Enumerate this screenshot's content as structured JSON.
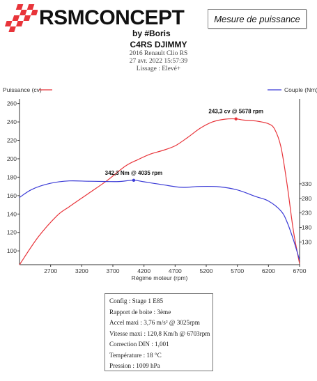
{
  "brand": {
    "logo_text": "RSMCONCEPT",
    "logo_sub": "by #Boris",
    "badge": "Mesure de puissance"
  },
  "header": {
    "title": "C4RS DJIMMY",
    "car": "2016 Renault Clio RS",
    "date": "27 avr. 2022 15:57:39",
    "smoothing": "Lissage : Elevé+"
  },
  "colors": {
    "power": "#e8343a",
    "torque": "#3a3ad6"
  },
  "chart_data": {
    "type": "line",
    "xlabel": "Régime moteur (rpm)",
    "x_ticks": [
      2700,
      3200,
      3700,
      4200,
      4700,
      5200,
      5700,
      6200,
      6700
    ],
    "xlim": [
      2200,
      6700
    ],
    "left_axis": {
      "label": "Puissance (cv)",
      "ylim": [
        85,
        265
      ],
      "ticks": [
        100,
        120,
        140,
        160,
        180,
        200,
        220,
        240,
        260
      ]
    },
    "right_axis": {
      "label": "Couple (Nm)",
      "ylim": [
        52,
        622
      ],
      "ticks": [
        130,
        180,
        230,
        280,
        330
      ]
    },
    "grid": false,
    "legend": [
      "top-left",
      "top-right"
    ],
    "series": [
      {
        "name": "Puissance (cv)",
        "axis": "left",
        "x": [
          2200,
          2500,
          2800,
          3000,
          3300,
          3600,
          3900,
          4100,
          4300,
          4500,
          4700,
          4900,
          5100,
          5300,
          5500,
          5678,
          5800,
          6000,
          6200,
          6300,
          6400,
          6500,
          6600,
          6700
        ],
        "values": [
          85,
          115,
          138,
          148,
          162,
          176,
          192,
          199,
          205,
          209,
          214,
          223,
          233,
          240,
          243,
          243.3,
          242,
          241,
          238,
          232,
          213,
          172,
          122,
          86
        ]
      },
      {
        "name": "Couple (Nm)",
        "axis": "right",
        "x": [
          2200,
          2400,
          2700,
          3000,
          3300,
          3600,
          3800,
          4035,
          4200,
          4500,
          4800,
          5100,
          5400,
          5700,
          6000,
          6200,
          6400,
          6500,
          6600,
          6700
        ],
        "values": [
          283,
          311,
          332,
          340,
          339,
          338,
          338,
          342.3,
          337,
          327,
          318,
          321,
          320,
          309,
          286,
          271,
          237,
          198,
          138,
          68
        ]
      }
    ],
    "annotations": [
      {
        "series": "Puissance (cv)",
        "x": 5678,
        "y": 243.3,
        "text": "243,3 cv @ 5678 rpm"
      },
      {
        "series": "Couple (Nm)",
        "x": 4035,
        "y": 342.3,
        "text": "342,3 Nm @ 4035 rpm"
      }
    ]
  },
  "info": [
    "Config : Stage 1 E85",
    "Rapport de boite : 3ème",
    "Accel maxi : 3,76 m/s² @ 3025rpm",
    "Vitesse maxi : 120,8 Km/h @ 6703rpm",
    "Correction DIN : 1,001",
    "Température : 18 °C",
    "Pression : 1009 hPa"
  ]
}
